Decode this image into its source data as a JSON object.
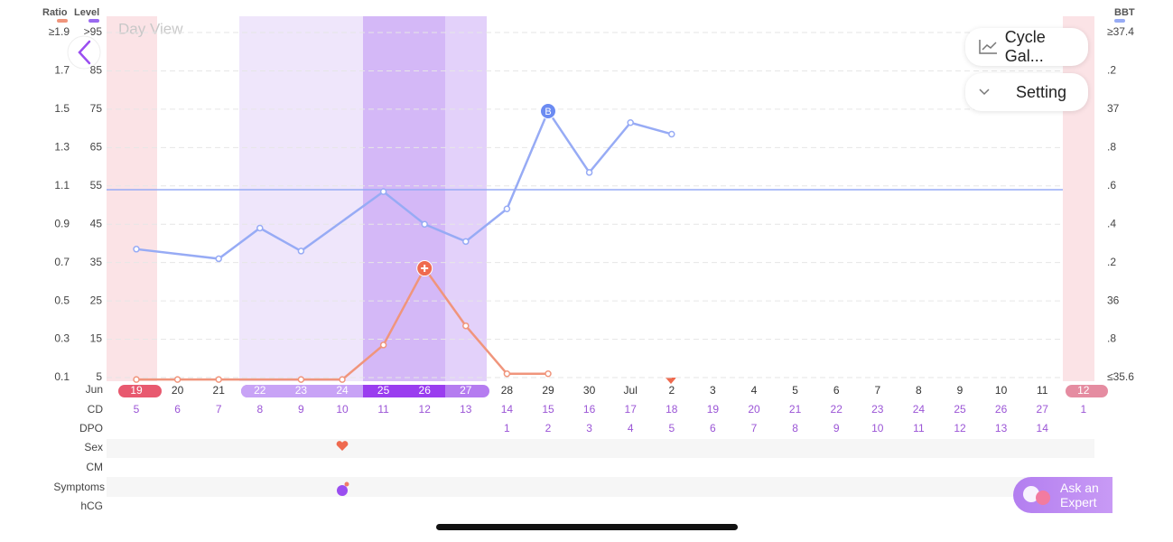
{
  "header": {
    "day_view": "Day View"
  },
  "buttons": {
    "cycle": "Cycle Gal...",
    "setting": "Setting",
    "expert_line1": "Ask an",
    "expert_line2": "Expert"
  },
  "chart_data": {
    "type": "line",
    "month_label": "Jun",
    "categories": [
      "19",
      "20",
      "21",
      "22",
      "23",
      "24",
      "25",
      "26",
      "27",
      "28",
      "29",
      "30",
      "Jul",
      "2",
      "3",
      "4",
      "5",
      "6",
      "7",
      "8",
      "9",
      "10",
      "11",
      "12"
    ],
    "ylabel": "Ratio",
    "ylim": [
      0.1,
      1.9
    ],
    "yticks": [
      {
        "value": 1.9,
        "label": "≥1.9"
      },
      1.7,
      1.5,
      1.3,
      1.1,
      0.9,
      0.7,
      0.5,
      0.3,
      0.1
    ],
    "level_label": "Level",
    "level_lim": [
      5,
      95
    ],
    "level_ticks": [
      {
        "value": 95,
        "label": ">95"
      },
      85,
      75,
      65,
      55,
      45,
      35,
      25,
      15,
      5
    ],
    "y2label": "BBT",
    "y2lim": [
      35.6,
      37.4
    ],
    "y2ticks": [
      {
        "value": 37.4,
        "label": "≥37.4"
      },
      {
        "value": 37.2,
        "label": ".2"
      },
      37,
      {
        "value": 36.8,
        "label": ".8"
      },
      {
        "value": 36.6,
        "label": ".6"
      },
      {
        "value": 36.4,
        "label": ".4"
      },
      {
        "value": 36.2,
        "label": ".2"
      },
      36,
      {
        "value": 35.8,
        "label": ".8"
      },
      {
        "value": 35.6,
        "label": "≤35.6"
      }
    ],
    "coverline": 36.58,
    "series": [
      {
        "name": "Ratio",
        "color": "#f0957c",
        "x": [
          "19",
          "20",
          "21",
          "23",
          "24",
          "25",
          "26",
          "27",
          "28",
          "29"
        ],
        "values": [
          0.09,
          0.09,
          0.09,
          0.09,
          0.09,
          0.27,
          0.67,
          0.37,
          0.12,
          0.12
        ],
        "marker": {
          "x": "26"
        }
      },
      {
        "name": "BBT",
        "color": "#97abf5",
        "axis": "y2",
        "x": [
          "19",
          "21",
          "22",
          "23",
          "25",
          "26",
          "27",
          "28",
          "29",
          "30",
          "Jul",
          "2"
        ],
        "values": [
          36.27,
          36.22,
          36.38,
          36.26,
          36.57,
          36.4,
          36.31,
          36.48,
          36.99,
          36.67,
          36.93,
          36.87
        ],
        "marker": {
          "x": "29",
          "label": "B"
        }
      }
    ],
    "rows": {
      "cd": {
        "label": "CD",
        "values": [
          5,
          6,
          7,
          8,
          9,
          10,
          11,
          12,
          13,
          14,
          15,
          16,
          17,
          18,
          19,
          20,
          21,
          22,
          23,
          24,
          25,
          26,
          27,
          1
        ]
      },
      "dpo": {
        "label": "DPO",
        "values": [
          null,
          null,
          null,
          null,
          null,
          null,
          null,
          null,
          null,
          1,
          2,
          3,
          4,
          5,
          6,
          7,
          8,
          9,
          10,
          11,
          12,
          13,
          14,
          null
        ]
      },
      "sex": {
        "label": "Sex",
        "days": [
          "24"
        ]
      },
      "cm": {
        "label": "CM"
      },
      "symptoms": {
        "label": "Symptoms",
        "days": [
          "24"
        ]
      },
      "hcg": {
        "label": "hCG"
      }
    }
  }
}
